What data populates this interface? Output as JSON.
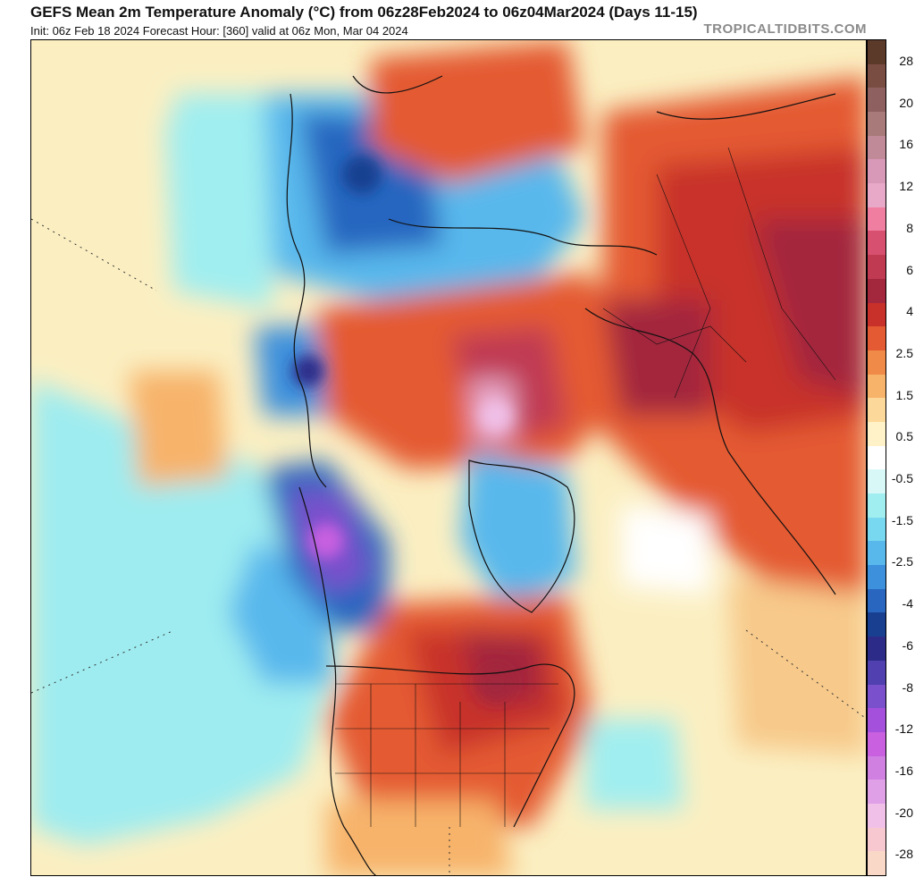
{
  "header": {
    "title": "GEFS Mean 2m Temperature Anomaly (°C) from 06z28Feb2024 to 06z04Mar2024 (Days 11-15)",
    "subtitle": "Init: 06z Feb 18 2024   Forecast Hour: [360]   valid at 06z Mon, Mar 04 2024",
    "credit": "TROPICALTIDBITS.COM"
  },
  "colorbar": {
    "tick_labels": [
      "28",
      "20",
      "16",
      "12",
      "8",
      "6",
      "4",
      "2.5",
      "1.5",
      "0.5",
      "-0.5",
      "-1.5",
      "-2.5",
      "-4",
      "-6",
      "-8",
      "-12",
      "-16",
      "-20",
      "-28"
    ],
    "colors": [
      "#5c3a2a",
      "#7a4d42",
      "#8f6060",
      "#a87a7a",
      "#c08a98",
      "#d898b8",
      "#e8a8c8",
      "#f07ea0",
      "#d85070",
      "#c03a52",
      "#a3283e",
      "#c8302a",
      "#e45a32",
      "#f08a48",
      "#f7b36a",
      "#fcd99a",
      "#fff2c8",
      "#ffffff",
      "#d8f8f8",
      "#a0eef0",
      "#78d8f0",
      "#58b8ec",
      "#3d90dc",
      "#2866c0",
      "#183f90",
      "#2c2c88",
      "#5040b0",
      "#7a50cc",
      "#a450dc",
      "#c860e0",
      "#d080e0",
      "#e0a0e8",
      "#f0c0e8",
      "#f8c8d0",
      "#fad8c8"
    ]
  }
}
